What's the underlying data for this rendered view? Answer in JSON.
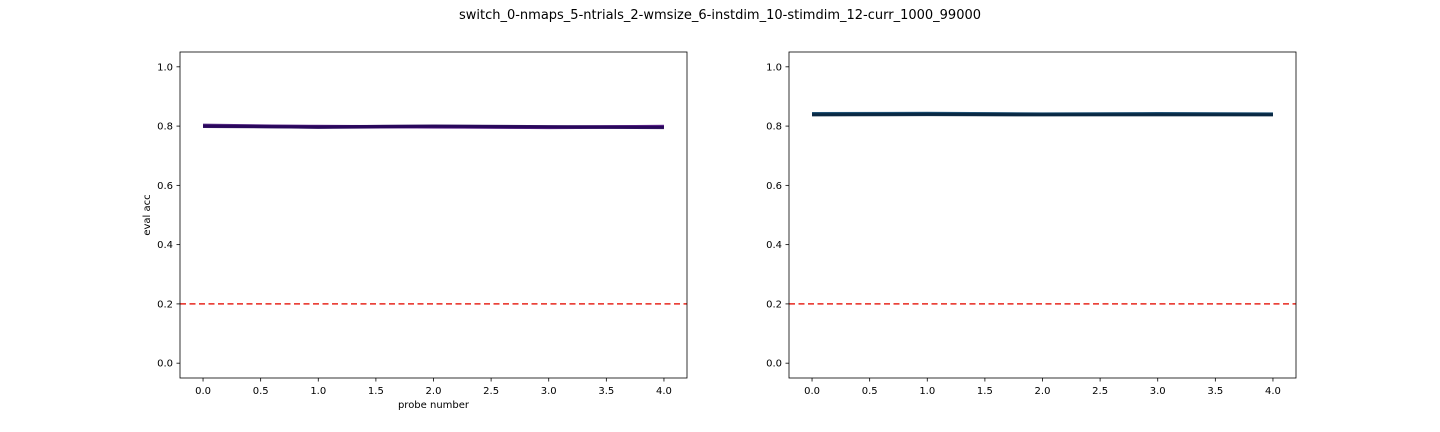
{
  "figure": {
    "suptitle": "switch_0-nmaps_5-ntrials_2-wmsize_6-instdim_10-stimdim_12-curr_1000_99000"
  },
  "chart_data": [
    {
      "type": "line",
      "title": "",
      "xlabel": "probe number",
      "ylabel": "eval acc",
      "xlim": [
        -0.2,
        4.2
      ],
      "ylim": [
        -0.05,
        1.05
      ],
      "x_ticks": [
        0.0,
        0.5,
        1.0,
        1.5,
        2.0,
        2.5,
        3.0,
        3.5,
        4.0
      ],
      "x_tick_labels": [
        "0.0",
        "0.5",
        "1.0",
        "1.5",
        "2.0",
        "2.5",
        "3.0",
        "3.5",
        "4.0"
      ],
      "y_ticks": [
        0.0,
        0.2,
        0.4,
        0.6,
        0.8,
        1.0
      ],
      "y_tick_labels": [
        "0.0",
        "0.2",
        "0.4",
        "0.6",
        "0.8",
        "1.0"
      ],
      "grid": false,
      "reference_line": {
        "y": 0.2,
        "color": "#e8281e",
        "style": "dashed"
      },
      "series": [
        {
          "color": "#3b0f70",
          "x": [
            0,
            1,
            2,
            3,
            4
          ],
          "values": [
            0.803,
            0.798,
            0.799,
            0.797,
            0.798
          ]
        },
        {
          "color": "#2a0a63",
          "x": [
            0,
            1,
            2,
            3,
            4
          ],
          "values": [
            0.801,
            0.796,
            0.798,
            0.795,
            0.797
          ]
        },
        {
          "color": "#5a1f8a",
          "x": [
            0,
            1,
            2,
            3,
            4
          ],
          "values": [
            0.8,
            0.799,
            0.797,
            0.796,
            0.799
          ]
        },
        {
          "color": "#220355",
          "x": [
            0,
            1,
            2,
            3,
            4
          ],
          "values": [
            0.799,
            0.797,
            0.8,
            0.798,
            0.795
          ]
        }
      ]
    },
    {
      "type": "line",
      "title": "",
      "xlabel": "",
      "ylabel": "",
      "xlim": [
        -0.2,
        4.2
      ],
      "ylim": [
        -0.05,
        1.05
      ],
      "x_ticks": [
        0.0,
        0.5,
        1.0,
        1.5,
        2.0,
        2.5,
        3.0,
        3.5,
        4.0
      ],
      "x_tick_labels": [
        "0.0",
        "0.5",
        "1.0",
        "1.5",
        "2.0",
        "2.5",
        "3.0",
        "3.5",
        "4.0"
      ],
      "y_ticks": [
        0.0,
        0.2,
        0.4,
        0.6,
        0.8,
        1.0
      ],
      "y_tick_labels": [
        "0.0",
        "0.2",
        "0.4",
        "0.6",
        "0.8",
        "1.0"
      ],
      "grid": false,
      "reference_line": {
        "y": 0.2,
        "color": "#e8281e",
        "style": "dashed"
      },
      "series": [
        {
          "color": "#0d3a5e",
          "x": [
            0,
            1,
            2,
            3,
            4
          ],
          "values": [
            0.841,
            0.842,
            0.84,
            0.841,
            0.84
          ]
        },
        {
          "color": "#0a2f4f",
          "x": [
            0,
            1,
            2,
            3,
            4
          ],
          "values": [
            0.839,
            0.84,
            0.839,
            0.84,
            0.839
          ]
        },
        {
          "color": "#14496f",
          "x": [
            0,
            1,
            2,
            3,
            4
          ],
          "values": [
            0.842,
            0.843,
            0.841,
            0.842,
            0.841
          ]
        },
        {
          "color": "#08243d",
          "x": [
            0,
            1,
            2,
            3,
            4
          ],
          "values": [
            0.838,
            0.839,
            0.838,
            0.838,
            0.838
          ]
        }
      ]
    }
  ]
}
